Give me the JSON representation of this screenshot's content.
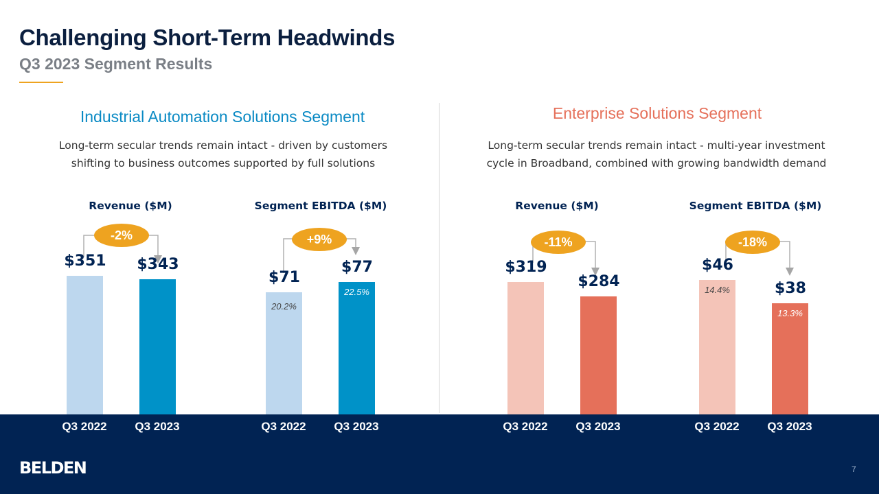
{
  "header": {
    "title": "Challenging Short-Term Headwinds",
    "subtitle": "Q3 2023 Segment Results"
  },
  "segments": [
    {
      "title": "Industrial Automation Solutions Segment",
      "color": "#0a8ac4",
      "description_lines": [
        "Long-term secular trends remain intact - driven by customers",
        "shifting to business outcomes supported by full solutions"
      ]
    },
    {
      "title": "Enterprise Solutions Segment",
      "color": "#e5705a",
      "description_lines": [
        "Long-term secular trends remain intact - multi-year investment",
        "cycle in Broadband, combined with growing bandwidth demand"
      ]
    }
  ],
  "chart_data": [
    {
      "type": "bar",
      "title": "Revenue ($M)",
      "categories": [
        "Q3 2022",
        "Q3 2023"
      ],
      "values": [
        351,
        343
      ],
      "value_labels": [
        "$351",
        "$343"
      ],
      "change": "-2%",
      "colors": [
        "#bdd7ee",
        "#0092c8"
      ]
    },
    {
      "type": "bar",
      "title": "Segment EBITDA ($M)",
      "categories": [
        "Q3 2022",
        "Q3 2023"
      ],
      "values": [
        71,
        77
      ],
      "value_labels": [
        "$71",
        "$77"
      ],
      "margins": [
        "20.2%",
        "22.5%"
      ],
      "change": "+9%",
      "colors": [
        "#bdd7ee",
        "#0092c8"
      ]
    },
    {
      "type": "bar",
      "title": "Revenue ($M)",
      "categories": [
        "Q3 2022",
        "Q3 2023"
      ],
      "values": [
        319,
        284
      ],
      "value_labels": [
        "$319",
        "$284"
      ],
      "change": "-11%",
      "colors": [
        "#f4c4b8",
        "#e5705a"
      ]
    },
    {
      "type": "bar",
      "title": "Segment EBITDA ($M)",
      "categories": [
        "Q3 2022",
        "Q3 2023"
      ],
      "values": [
        46,
        38
      ],
      "value_labels": [
        "$46",
        "$38"
      ],
      "margins": [
        "14.4%",
        "13.3%"
      ],
      "change": "-18%",
      "colors": [
        "#f4c4b8",
        "#e5705a"
      ]
    }
  ],
  "accent": "#eea320",
  "footer": {
    "logo": "BELDEN",
    "page": "7",
    "background": "#012353"
  }
}
